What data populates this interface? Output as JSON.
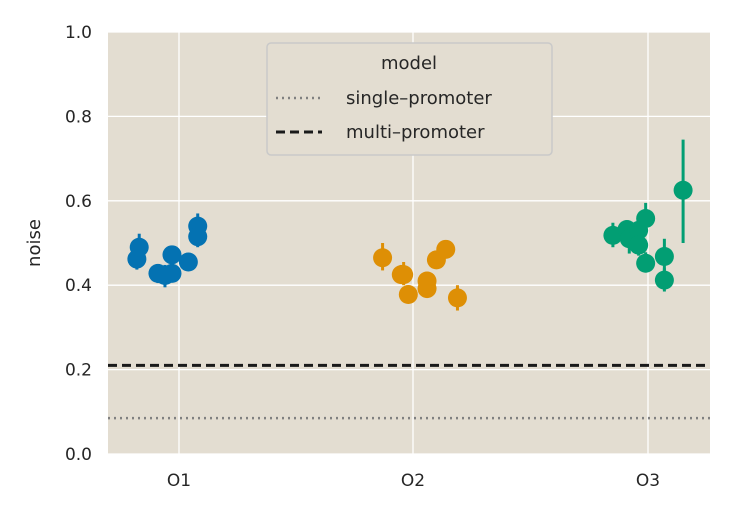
{
  "chart_data": {
    "type": "scatter",
    "title": "",
    "xlabel": "",
    "ylabel": "noise",
    "ylim": [
      0.0,
      1.0
    ],
    "yticks": [
      0.0,
      0.2,
      0.4,
      0.6,
      0.8,
      1.0
    ],
    "ytick_labels": [
      "0.0",
      "0.2",
      "0.4",
      "0.6",
      "0.8",
      "1.0"
    ],
    "categories": [
      "O1",
      "O2",
      "O3"
    ],
    "grid": true,
    "background": "#e3ddd1",
    "legend": {
      "title": "model",
      "placement": "top-center",
      "entries": [
        {
          "label": "single–promoter",
          "style": "dotted",
          "color": "#808080"
        },
        {
          "label": "multi–promoter",
          "style": "dashed",
          "color": "#1a1a1a"
        }
      ]
    },
    "reference_lines": [
      {
        "name": "single–promoter",
        "y": 0.085,
        "style": "dotted",
        "color": "#808080"
      },
      {
        "name": "multi–promoter",
        "y": 0.21,
        "style": "dashed",
        "color": "#1a1a1a"
      }
    ],
    "series": [
      {
        "category": "O1",
        "color": "#0472b2",
        "points": [
          {
            "offset": -0.18,
            "y": 0.462,
            "lo": 0.437,
            "hi": 0.488
          },
          {
            "offset": -0.17,
            "y": 0.49,
            "lo": 0.462,
            "hi": 0.522
          },
          {
            "offset": -0.09,
            "y": 0.428,
            "lo": 0.405,
            "hi": 0.448
          },
          {
            "offset": -0.06,
            "y": 0.423,
            "lo": 0.395,
            "hi": 0.448
          },
          {
            "offset": -0.03,
            "y": 0.472,
            "lo": 0.455,
            "hi": 0.49
          },
          {
            "offset": -0.03,
            "y": 0.428,
            "lo": 0.408,
            "hi": 0.448
          },
          {
            "offset": 0.04,
            "y": 0.455,
            "lo": 0.44,
            "hi": 0.472
          },
          {
            "offset": 0.08,
            "y": 0.54,
            "lo": 0.512,
            "hi": 0.57
          },
          {
            "offset": 0.08,
            "y": 0.515,
            "lo": 0.49,
            "hi": 0.542
          }
        ]
      },
      {
        "category": "O2",
        "color": "#de8f05",
        "points": [
          {
            "offset": -0.13,
            "y": 0.465,
            "lo": 0.435,
            "hi": 0.5
          },
          {
            "offset": -0.05,
            "y": 0.425,
            "lo": 0.405,
            "hi": 0.448
          },
          {
            "offset": -0.04,
            "y": 0.425,
            "lo": 0.4,
            "hi": 0.455
          },
          {
            "offset": -0.02,
            "y": 0.378,
            "lo": 0.36,
            "hi": 0.395
          },
          {
            "offset": 0.06,
            "y": 0.392,
            "lo": 0.372,
            "hi": 0.412
          },
          {
            "offset": 0.06,
            "y": 0.41,
            "lo": 0.395,
            "hi": 0.428
          },
          {
            "offset": 0.1,
            "y": 0.46,
            "lo": 0.445,
            "hi": 0.478
          },
          {
            "offset": 0.14,
            "y": 0.485,
            "lo": 0.468,
            "hi": 0.502
          },
          {
            "offset": 0.19,
            "y": 0.37,
            "lo": 0.34,
            "hi": 0.4
          }
        ]
      },
      {
        "category": "O3",
        "color": "#029e73",
        "points": [
          {
            "offset": -0.15,
            "y": 0.518,
            "lo": 0.49,
            "hi": 0.548
          },
          {
            "offset": -0.09,
            "y": 0.532,
            "lo": 0.51,
            "hi": 0.55
          },
          {
            "offset": -0.08,
            "y": 0.51,
            "lo": 0.475,
            "hi": 0.545
          },
          {
            "offset": -0.04,
            "y": 0.53,
            "lo": 0.505,
            "hi": 0.555
          },
          {
            "offset": -0.04,
            "y": 0.495,
            "lo": 0.47,
            "hi": 0.52
          },
          {
            "offset": -0.01,
            "y": 0.452,
            "lo": 0.43,
            "hi": 0.478
          },
          {
            "offset": -0.01,
            "y": 0.558,
            "lo": 0.525,
            "hi": 0.595
          },
          {
            "offset": 0.07,
            "y": 0.468,
            "lo": 0.435,
            "hi": 0.51
          },
          {
            "offset": 0.07,
            "y": 0.412,
            "lo": 0.385,
            "hi": 0.44
          },
          {
            "offset": 0.15,
            "y": 0.625,
            "lo": 0.5,
            "hi": 0.745
          }
        ]
      }
    ]
  }
}
